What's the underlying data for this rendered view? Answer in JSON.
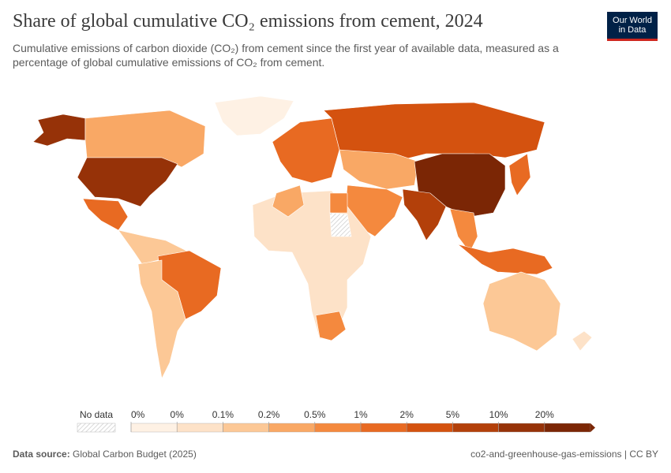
{
  "header": {
    "title": "Share of global cumulative CO₂ emissions from cement, 2024",
    "subtitle": "Cumulative emissions of carbon dioxide (CO₂) from cement since the first year of available data, measured as a percentage of global cumulative emissions of CO₂ from cement.",
    "logo": [
      "Our World",
      "in Data"
    ]
  },
  "legend": {
    "no_data": "No data",
    "labels": [
      "0%",
      "0%",
      "0.1%",
      "0.2%",
      "0.5%",
      "1%",
      "2%",
      "5%",
      "10%",
      "20%"
    ],
    "colors": [
      "#fef1e4",
      "#fde2c8",
      "#fcc896",
      "#f9a865",
      "#f4893e",
      "#e86a22",
      "#d4520f",
      "#b3400a",
      "#963208",
      "#7b2605"
    ]
  },
  "footer": {
    "source_label": "Data source:",
    "source": "Global Carbon Budget (2025)",
    "right": "co2-and-greenhouse-gas-emissions | CC BY"
  }
}
